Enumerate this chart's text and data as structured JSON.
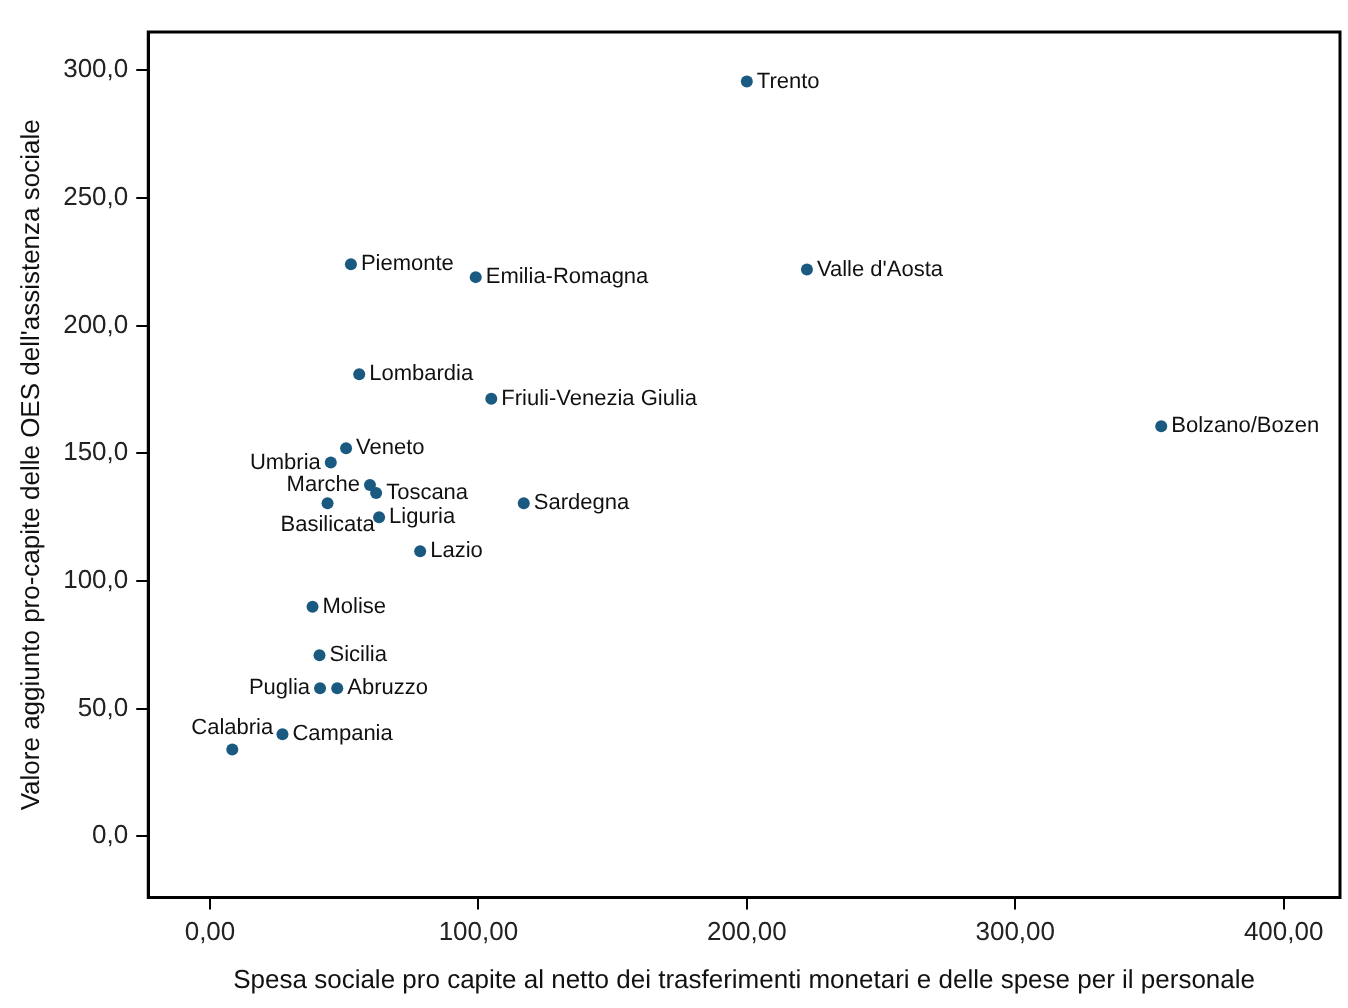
{
  "chart_data": {
    "type": "scatter",
    "xlabel": "Spesa sociale pro capite al netto dei trasferimenti monetari e delle spese per il personale",
    "ylabel": "Valore aggiunto pro-capite delle OES dell'assistenza sociale",
    "marker": "circle",
    "grid": false,
    "legend": false,
    "x": [
      200,
      222.4,
      354.4,
      52.5,
      99,
      55.6,
      104.8,
      50.7,
      45,
      59.6,
      61.9,
      43.8,
      63,
      116.9,
      78.3,
      38.2,
      40.8,
      41,
      47.4,
      27,
      8.3
    ],
    "series": [
      {
        "color": "#1a5a80",
        "values": [
          295.6,
          222,
          160.6,
          224,
          219,
          181,
          171.4,
          152,
          146.4,
          137.6,
          134.5,
          130.4,
          125,
          130.4,
          111.6,
          89.9,
          70.9,
          58,
          58,
          40,
          34
        ]
      }
    ],
    "xlim": [
      -23,
      421
    ],
    "ylim": [
      -24,
      315
    ],
    "xticks": [
      {
        "value": 0,
        "label": "0,00"
      },
      {
        "value": 100,
        "label": "100,00"
      },
      {
        "value": 200,
        "label": "200,00"
      },
      {
        "value": 300,
        "label": "300,00"
      },
      {
        "value": 400,
        "label": "400,00"
      }
    ],
    "yticks": [
      {
        "value": 0,
        "label": "0,0"
      },
      {
        "value": 50,
        "label": "50,0"
      },
      {
        "value": 100,
        "label": "100,0"
      },
      {
        "value": 150,
        "label": "150,0"
      },
      {
        "value": 200,
        "label": "200,0"
      },
      {
        "value": 250,
        "label": "250,0"
      },
      {
        "value": 300,
        "label": "300,0"
      }
    ],
    "annotations": [
      {
        "text": "Trento",
        "x": 200,
        "y": 295.6
      },
      {
        "text": "Valle d'Aosta",
        "x": 222.4,
        "y": 222
      },
      {
        "text": "Bolzano/Bozen",
        "x": 354.4,
        "y": 160.6
      },
      {
        "text": "Piemonte",
        "x": 52.5,
        "y": 224
      },
      {
        "text": "Emilia-Romagna",
        "x": 99,
        "y": 219
      },
      {
        "text": "Lombardia",
        "x": 55.6,
        "y": 181
      },
      {
        "text": "Friuli-Venezia Giulia",
        "x": 104.8,
        "y": 171.4
      },
      {
        "text": "Veneto",
        "x": 50.7,
        "y": 152
      },
      {
        "text": "Umbria",
        "x": 45,
        "y": 146.4
      },
      {
        "text": "Marche",
        "x": 59.6,
        "y": 137.6
      },
      {
        "text": "Toscana",
        "x": 61.9,
        "y": 134.5
      },
      {
        "text": "Basilicata",
        "x": 43.8,
        "y": 130.4
      },
      {
        "text": "Liguria",
        "x": 63,
        "y": 125
      },
      {
        "text": "Sardegna",
        "x": 116.9,
        "y": 130.4
      },
      {
        "text": "Lazio",
        "x": 78.3,
        "y": 111.6
      },
      {
        "text": "Molise",
        "x": 38.2,
        "y": 89.9
      },
      {
        "text": "Sicilia",
        "x": 40.8,
        "y": 70.9
      },
      {
        "text": "Puglia",
        "x": 41,
        "y": 58
      },
      {
        "text": "Abruzzo",
        "x": 47.4,
        "y": 58
      },
      {
        "text": "Campania",
        "x": 27,
        "y": 40
      },
      {
        "text": "Calabria",
        "x": 8.3,
        "y": 34
      }
    ]
  }
}
